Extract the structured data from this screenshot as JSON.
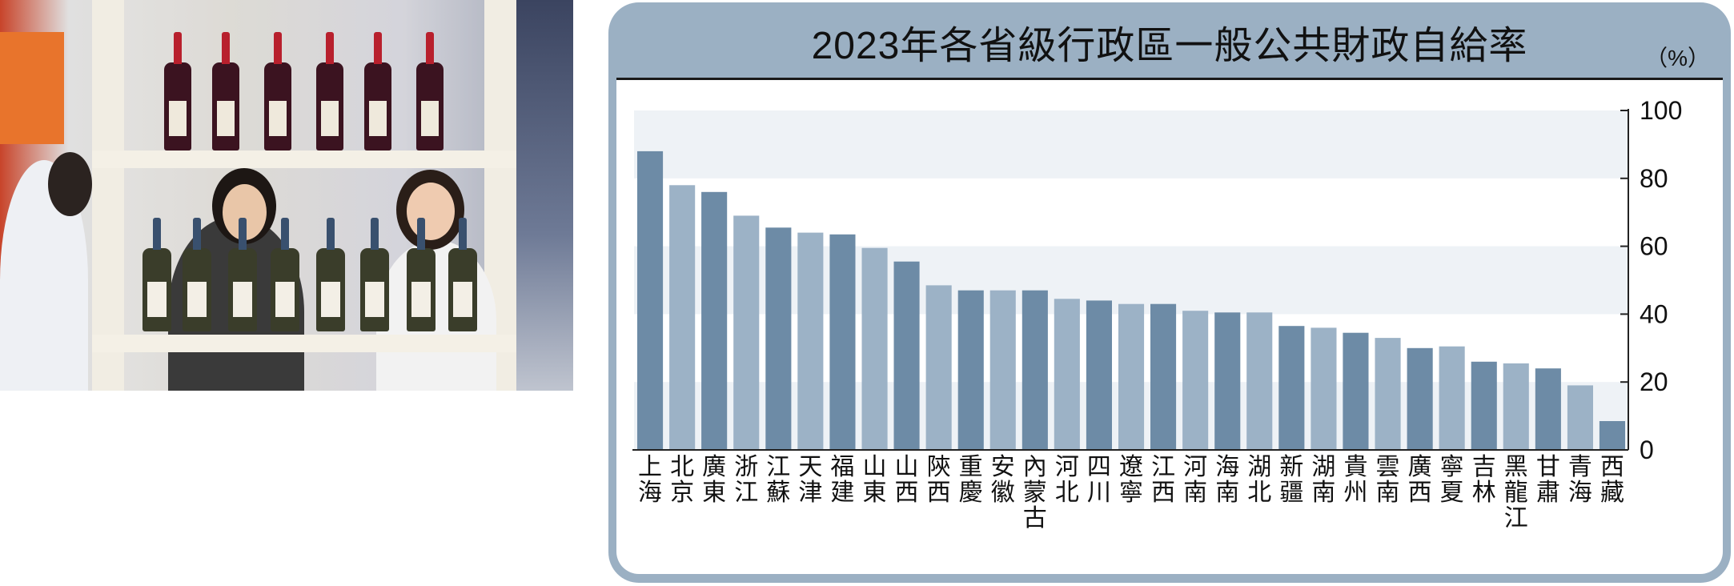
{
  "photo": {
    "description_icon": "wine-display-photo"
  },
  "title": "2023年各省級行政區一般公共財政自給率",
  "unit": "（%）",
  "colors": {
    "panel": "#9bb0c3",
    "bar_dark": "#6d8ba6",
    "bar_light": "#9cb2c6",
    "band": "#eef2f6"
  },
  "chart_data": {
    "type": "bar",
    "title": "2023年各省級行政區一般公共財政自給率",
    "ylabel": "（%）",
    "ylim": [
      0,
      100
    ],
    "yticks": [
      0,
      20,
      40,
      60,
      80,
      100
    ],
    "grid": "alternating horizontal bands",
    "categories": [
      "上海",
      "北京",
      "廣東",
      "浙江",
      "江蘇",
      "天津",
      "福建",
      "山東",
      "山西",
      "陝西",
      "重慶",
      "安徽",
      "內蒙古",
      "河北",
      "四川",
      "遼寧",
      "江西",
      "河南",
      "海南",
      "湖北",
      "新疆",
      "湖南",
      "貴州",
      "雲南",
      "廣西",
      "寧夏",
      "吉林",
      "黑龍江",
      "甘肅",
      "青海",
      "西藏"
    ],
    "values": [
      88,
      78,
      76,
      69,
      65.5,
      64,
      63.5,
      59.5,
      55.5,
      48.5,
      47,
      47,
      47,
      44.5,
      44,
      43,
      43,
      41,
      40.5,
      40.5,
      36.5,
      36,
      34.5,
      33,
      30,
      30.5,
      26,
      25.5,
      24,
      19,
      8.5
    ]
  }
}
